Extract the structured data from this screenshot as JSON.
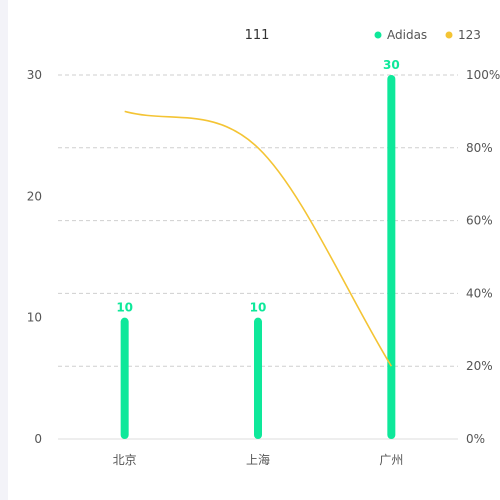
{
  "chart_data": {
    "type": "bar",
    "title": "111",
    "categories": [
      "北京",
      "上海",
      "广州"
    ],
    "series": [
      {
        "name": "Adidas",
        "type": "bar",
        "color": "#0ee89a",
        "values": [
          10,
          10,
          30
        ],
        "show_labels": true
      },
      {
        "name": "123",
        "type": "line",
        "color": "#f4c434",
        "values": [
          90,
          80,
          20
        ],
        "smooth": true,
        "axis": "right"
      }
    ],
    "yaxis_left": {
      "ticks": [
        "0",
        "10",
        "20",
        "30"
      ],
      "min": 0,
      "max": 30
    },
    "yaxis_right": {
      "ticks": [
        "0%",
        "20%",
        "40%",
        "60%",
        "80%",
        "100%"
      ],
      "min": 0,
      "max": 100
    },
    "grid": "horizontal-dashed",
    "legend_position": "top-right"
  }
}
